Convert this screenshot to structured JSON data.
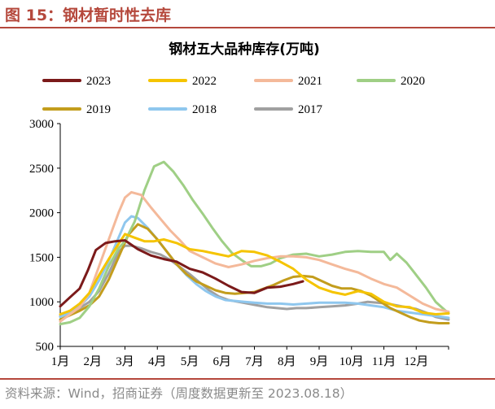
{
  "figure": {
    "title": "图 15：钢材暂时性去库",
    "footer": "资料来源：Wind，招商证券（周度数据更新至 2023.08.18）"
  },
  "chart_data": {
    "type": "line",
    "title": "钢材五大品种库存(万吨)",
    "xlabel": "",
    "ylabel": "",
    "ylim": [
      500,
      3000
    ],
    "yticks": [
      500,
      1000,
      1500,
      2000,
      2500,
      3000
    ],
    "xticks": [
      "1月",
      "2月",
      "3月",
      "4月",
      "5月",
      "6月",
      "7月",
      "8月",
      "9月",
      "10月",
      "11月",
      "12月"
    ],
    "x_unit": "month (1 = start of January)",
    "grid": false,
    "legend": "top, two rows",
    "series": [
      {
        "name": "2023",
        "color": "#7b1a1a",
        "x": [
          1.0,
          1.3,
          1.6,
          1.85,
          2.1,
          2.4,
          2.7,
          3.0,
          3.4,
          3.8,
          4.2,
          4.6,
          5.0,
          5.4,
          5.8,
          6.2,
          6.6,
          7.0,
          7.4,
          7.8,
          8.2,
          8.5
        ],
        "y": [
          950,
          1050,
          1150,
          1350,
          1580,
          1660,
          1680,
          1690,
          1590,
          1520,
          1480,
          1450,
          1370,
          1330,
          1260,
          1180,
          1110,
          1100,
          1160,
          1170,
          1200,
          1230
        ]
      },
      {
        "name": "2022",
        "color": "#f5c400",
        "x": [
          1.0,
          1.3,
          1.6,
          1.9,
          2.2,
          2.5,
          2.8,
          3.0,
          3.3,
          3.6,
          3.9,
          4.2,
          4.6,
          5.0,
          5.4,
          5.8,
          6.2,
          6.6,
          7.0,
          7.4,
          7.8,
          8.2,
          8.6,
          9.0,
          9.4,
          9.8,
          10.2,
          10.6,
          11.0,
          11.4,
          11.8,
          12.2,
          12.6,
          13.0
        ],
        "y": [
          860,
          900,
          980,
          1100,
          1300,
          1480,
          1650,
          1760,
          1720,
          1680,
          1680,
          1700,
          1660,
          1590,
          1570,
          1540,
          1510,
          1570,
          1560,
          1520,
          1450,
          1370,
          1250,
          1160,
          1110,
          1080,
          1120,
          1090,
          1000,
          950,
          940,
          880,
          860,
          870
        ]
      },
      {
        "name": "2021",
        "color": "#f4b99a",
        "x": [
          1.0,
          1.3,
          1.6,
          1.9,
          2.2,
          2.5,
          2.8,
          3.0,
          3.2,
          3.5,
          3.8,
          4.1,
          4.4,
          4.7,
          5.0,
          5.4,
          5.8,
          6.2,
          6.6,
          7.0,
          7.4,
          7.8,
          8.2,
          8.6,
          9.0,
          9.4,
          9.8,
          10.2,
          10.6,
          11.0,
          11.4,
          11.8,
          12.2,
          12.6,
          13.0
        ],
        "y": [
          780,
          860,
          940,
          1100,
          1400,
          1700,
          2000,
          2170,
          2230,
          2200,
          2060,
          1930,
          1800,
          1690,
          1570,
          1500,
          1430,
          1390,
          1420,
          1460,
          1490,
          1510,
          1510,
          1500,
          1470,
          1420,
          1370,
          1330,
          1260,
          1200,
          1160,
          1070,
          980,
          920,
          890
        ]
      },
      {
        "name": "2020",
        "color": "#9fcf85",
        "x": [
          1.0,
          1.3,
          1.6,
          1.9,
          2.2,
          2.5,
          2.8,
          3.0,
          3.3,
          3.6,
          3.9,
          4.2,
          4.5,
          4.8,
          5.1,
          5.4,
          5.7,
          6.0,
          6.3,
          6.6,
          6.9,
          7.2,
          7.5,
          7.8,
          8.2,
          8.6,
          9.0,
          9.4,
          9.8,
          10.2,
          10.6,
          11.0,
          11.2,
          11.4,
          11.7,
          12.0,
          12.3,
          12.6,
          13.0
        ],
        "y": [
          750,
          770,
          820,
          950,
          1150,
          1400,
          1600,
          1680,
          1900,
          2250,
          2520,
          2570,
          2460,
          2310,
          2140,
          1990,
          1830,
          1680,
          1550,
          1470,
          1400,
          1400,
          1430,
          1490,
          1530,
          1540,
          1510,
          1530,
          1560,
          1570,
          1560,
          1560,
          1470,
          1540,
          1440,
          1300,
          1160,
          1000,
          870
        ]
      },
      {
        "name": "2019",
        "color": "#c39d1d",
        "x": [
          1.0,
          1.3,
          1.6,
          1.9,
          2.2,
          2.5,
          2.8,
          3.1,
          3.4,
          3.7,
          4.0,
          4.3,
          4.6,
          4.9,
          5.2,
          5.5,
          5.8,
          6.1,
          6.4,
          6.7,
          7.0,
          7.3,
          7.6,
          7.9,
          8.2,
          8.5,
          8.8,
          9.1,
          9.4,
          9.7,
          10.0,
          10.3,
          10.6,
          10.9,
          11.2,
          11.5,
          11.8,
          12.1,
          12.4,
          12.7,
          13.0
        ],
        "y": [
          800,
          850,
          900,
          960,
          1060,
          1250,
          1500,
          1750,
          1870,
          1820,
          1700,
          1560,
          1420,
          1310,
          1230,
          1180,
          1130,
          1100,
          1090,
          1100,
          1110,
          1150,
          1190,
          1240,
          1280,
          1290,
          1280,
          1230,
          1180,
          1150,
          1150,
          1120,
          1070,
          1000,
          930,
          880,
          830,
          790,
          770,
          760,
          760
        ]
      },
      {
        "name": "2018",
        "color": "#8fc7ee",
        "x": [
          1.0,
          1.3,
          1.6,
          1.9,
          2.2,
          2.5,
          2.8,
          3.0,
          3.2,
          3.4,
          3.7,
          4.0,
          4.3,
          4.6,
          4.9,
          5.2,
          5.5,
          5.8,
          6.1,
          6.4,
          6.7,
          7.0,
          7.4,
          7.8,
          8.2,
          8.6,
          9.0,
          9.4,
          9.8,
          10.2,
          10.6,
          11.0,
          11.4,
          11.8,
          12.2,
          12.6,
          13.0
        ],
        "y": [
          830,
          880,
          950,
          1060,
          1240,
          1460,
          1720,
          1890,
          1960,
          1940,
          1830,
          1700,
          1560,
          1420,
          1300,
          1200,
          1120,
          1060,
          1020,
          1010,
          1000,
          990,
          980,
          980,
          970,
          980,
          990,
          990,
          990,
          980,
          960,
          940,
          900,
          880,
          860,
          840,
          820
        ]
      },
      {
        "name": "2017",
        "color": "#a0a0a0",
        "x": [
          1.0,
          1.3,
          1.6,
          1.9,
          2.2,
          2.5,
          2.8,
          3.0,
          3.2,
          3.5,
          3.8,
          4.1,
          4.4,
          4.7,
          5.0,
          5.3,
          5.6,
          5.9,
          6.2,
          6.5,
          6.8,
          7.1,
          7.4,
          7.7,
          8.0,
          8.3,
          8.6,
          9.0,
          9.4,
          9.8,
          10.2,
          10.5,
          10.8,
          11.1,
          11.4,
          11.7,
          12.0,
          12.3,
          12.6,
          13.0
        ],
        "y": [
          840,
          870,
          930,
          1000,
          1120,
          1320,
          1560,
          1630,
          1630,
          1600,
          1560,
          1530,
          1470,
          1390,
          1310,
          1220,
          1130,
          1060,
          1020,
          1000,
          980,
          960,
          940,
          930,
          920,
          930,
          930,
          940,
          950,
          960,
          980,
          1000,
          990,
          980,
          960,
          940,
          920,
          880,
          830,
          800
        ]
      }
    ]
  }
}
